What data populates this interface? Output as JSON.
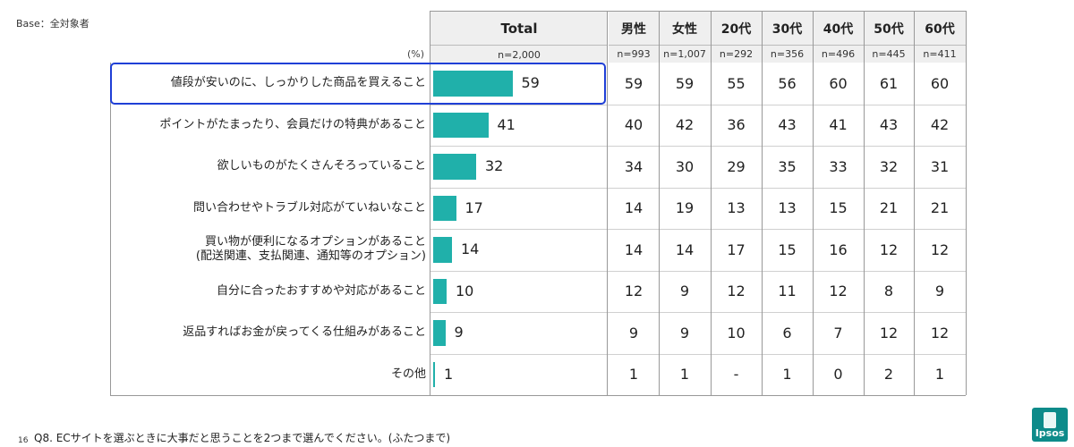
{
  "base_label": "Base：全対象者",
  "pct_label": "(%)",
  "columns": [
    {
      "label": "Total",
      "n": "n=2,000"
    },
    {
      "label": "男性",
      "n": "n=993"
    },
    {
      "label": "女性",
      "n": "n=1,007"
    },
    {
      "label": "20代",
      "n": "n=292"
    },
    {
      "label": "30代",
      "n": "n=356"
    },
    {
      "label": "40代",
      "n": "n=496"
    },
    {
      "label": "50代",
      "n": "n=445"
    },
    {
      "label": "60代",
      "n": "n=411"
    }
  ],
  "chart_data": {
    "type": "bar",
    "categories": [
      "値段が安いのに、しっかりした商品を買えること",
      "ポイントがたまったり、会員だけの特典があること",
      "欲しいものがたくさんそろっていること",
      "問い合わせやトラブル対応がていねいなこと",
      "買い物が便利になるオプションがあること\n(配送関連、支払関連、通知等のオプション)",
      "自分に合ったおすすめや対応があること",
      "返品すればお金が戻ってくる仕組みがあること",
      "その他"
    ],
    "values": [
      59,
      41,
      32,
      17,
      14,
      10,
      9,
      1
    ],
    "table": [
      [
        "59",
        "59",
        "55",
        "56",
        "60",
        "61",
        "60"
      ],
      [
        "40",
        "42",
        "36",
        "43",
        "41",
        "43",
        "42"
      ],
      [
        "34",
        "30",
        "29",
        "35",
        "33",
        "32",
        "31"
      ],
      [
        "14",
        "19",
        "13",
        "13",
        "15",
        "21",
        "21"
      ],
      [
        "14",
        "14",
        "17",
        "15",
        "16",
        "12",
        "12"
      ],
      [
        "12",
        "9",
        "12",
        "11",
        "12",
        "8",
        "9"
      ],
      [
        "9",
        "9",
        "10",
        "6",
        "7",
        "12",
        "12"
      ],
      [
        "1",
        "1",
        "-",
        "1",
        "0",
        "2",
        "1"
      ]
    ],
    "highlighted_row": 0,
    "colors": {
      "bar": "#20b0aa",
      "highlight": "#1f3fd6"
    }
  },
  "footer": {
    "page_number": "16",
    "question": "Q8. ECサイトを選ぶときに大事だと思うことを2つまで選んでください。(ふたつまで)"
  },
  "logo": {
    "text": "Ipsos"
  }
}
